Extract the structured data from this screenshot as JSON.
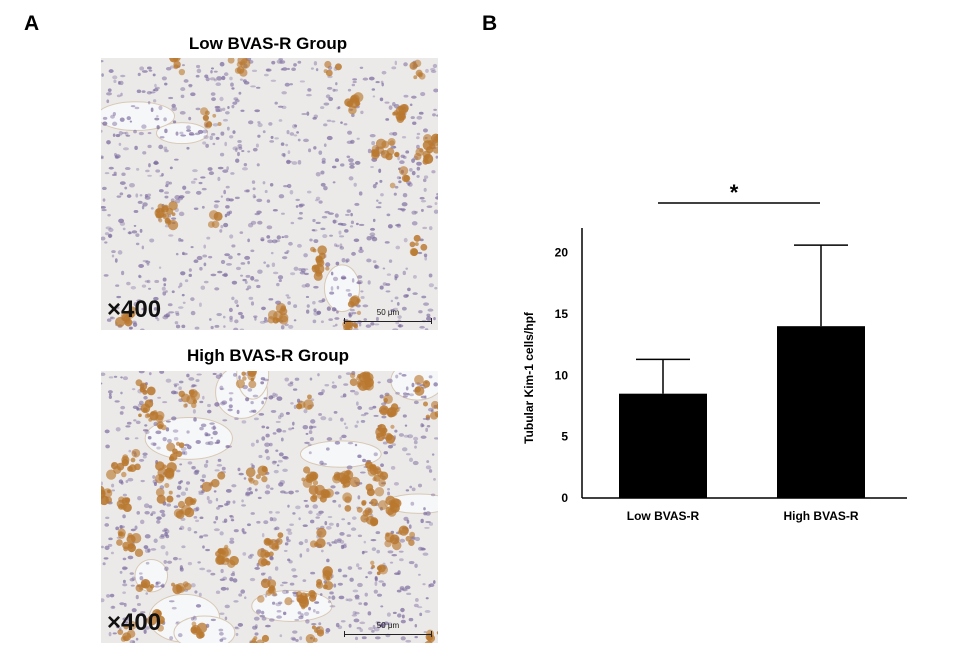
{
  "panel_a": {
    "letter": "A",
    "images": [
      {
        "title": "Low BVAS-R Group",
        "magnification": "×400",
        "scale_label": "50 μm"
      },
      {
        "title": "High BVAS-R Group",
        "magnification": "×400",
        "scale_label": "50 μm"
      }
    ]
  },
  "panel_b": {
    "letter": "B",
    "significance": "*"
  },
  "chart_data": {
    "type": "bar",
    "categories": [
      "Low BVAS-R",
      "High BVAS-R"
    ],
    "values": [
      8.5,
      14.0
    ],
    "error_upper": [
      11.3,
      20.6
    ],
    "xlabel": "",
    "ylabel": "Tubular Kim-1 cells/hpf",
    "ylim": [
      0,
      22
    ],
    "yticks": [
      0,
      5,
      10,
      15,
      20
    ],
    "grid": false,
    "bar_color": "#000000"
  },
  "colors": {
    "tissue_bg": "#eceae9",
    "nuclei": "#7b6a9e",
    "stain": "#b9782f"
  }
}
